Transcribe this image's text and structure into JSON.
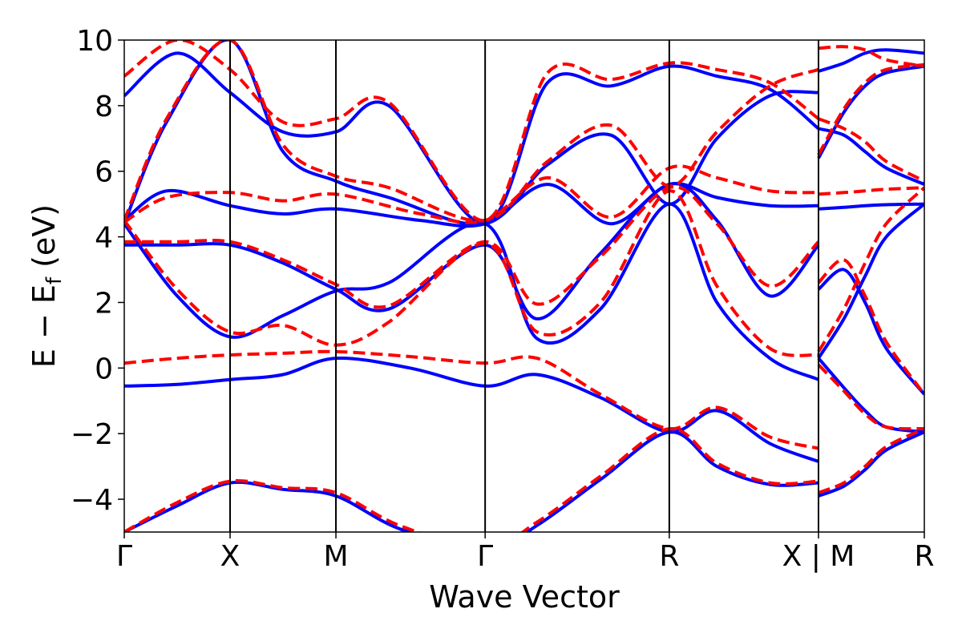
{
  "chart_data": {
    "type": "line",
    "title": "",
    "xlabel": "Wave Vector",
    "ylabel": "E − E_f (eV)",
    "ylabel_parts": {
      "main": "E − E",
      "sub": "f",
      "unit": " (eV)"
    },
    "ylim": [
      -5,
      10
    ],
    "y_ticks": [
      10,
      8,
      6,
      4,
      2,
      0,
      -2,
      -4
    ],
    "y_tick_labels": [
      "10",
      "8",
      "6",
      "4",
      "2",
      "0",
      "−2",
      "−4"
    ],
    "x_range": [
      0,
      7.56
    ],
    "k_points": [
      {
        "label": "Γ",
        "x": 0.0
      },
      {
        "label": "X",
        "x": 1.0
      },
      {
        "label": "M",
        "x": 2.0
      },
      {
        "label": "Γ",
        "x": 3.41
      },
      {
        "label": "R",
        "x": 5.15
      },
      {
        "label": "X | M",
        "x": 6.56
      },
      {
        "label": "R",
        "x": 7.56
      }
    ],
    "grid": false,
    "colors": {
      "solid": "#0000ff",
      "dashed": "#ff0000"
    },
    "series": [
      {
        "style": "solid",
        "color": "#0000ff",
        "x": [
          0,
          0.5,
          1,
          1.5,
          2,
          2.7,
          3.41,
          3.9,
          4.5,
          5.15,
          5.6,
          6.1,
          6.56
        ],
        "y": [
          -0.55,
          -0.5,
          -0.35,
          -0.2,
          0.3,
          0.0,
          -0.55,
          -0.2,
          -0.9,
          -1.95,
          -1.3,
          -2.3,
          -2.85
        ]
      },
      {
        "style": "dashed",
        "color": "#ff0000",
        "x": [
          0,
          0.5,
          1,
          1.5,
          2,
          2.7,
          3.41,
          3.9,
          4.5,
          5.15,
          5.6,
          6.1,
          6.56
        ],
        "y": [
          0.15,
          0.3,
          0.4,
          0.45,
          0.5,
          0.35,
          0.15,
          0.3,
          -0.8,
          -1.85,
          -1.2,
          -2.1,
          -2.45
        ]
      },
      {
        "style": "solid",
        "color": "#0000ff",
        "x": [
          0,
          0.5,
          1,
          1.5,
          2,
          2.5,
          3.41,
          3.9,
          4.5,
          5.15,
          5.6,
          6.1,
          6.56
        ],
        "y": [
          3.75,
          3.75,
          3.75,
          3.2,
          2.4,
          1.8,
          3.75,
          1.5,
          3.5,
          5.6,
          4.5,
          2.2,
          3.75
        ]
      },
      {
        "style": "dashed",
        "color": "#ff0000",
        "x": [
          0,
          0.5,
          1,
          1.5,
          2,
          2.5,
          3.41,
          3.9,
          4.5,
          5.15,
          5.6,
          6.1,
          6.56
        ],
        "y": [
          3.85,
          3.85,
          3.85,
          3.3,
          2.55,
          1.9,
          3.85,
          1.95,
          3.4,
          5.5,
          4.4,
          2.5,
          3.85
        ]
      },
      {
        "style": "solid",
        "color": "#0000ff",
        "x": [
          0,
          0.5,
          1,
          1.5,
          2,
          2.5,
          3.41,
          3.9,
          4.5,
          5.15,
          5.6,
          6.1,
          6.56
        ],
        "y": [
          4.4,
          2.2,
          0.95,
          1.6,
          2.35,
          2.6,
          4.4,
          0.9,
          1.8,
          5.0,
          2.0,
          0.3,
          -0.35
        ]
      },
      {
        "style": "dashed",
        "color": "#ff0000",
        "x": [
          0,
          0.5,
          1,
          1.5,
          2,
          2.5,
          3.41,
          3.9,
          4.5,
          5.15,
          5.6,
          6.1,
          6.56
        ],
        "y": [
          4.5,
          2.4,
          1.1,
          1.3,
          0.7,
          1.4,
          3.8,
          1.1,
          2.0,
          5.4,
          2.5,
          0.6,
          0.4
        ]
      },
      {
        "style": "solid",
        "color": "#0000ff",
        "x": [
          0,
          0.5,
          1,
          1.5,
          2,
          2.6,
          3.41,
          3.9,
          4.5,
          5.15,
          5.6,
          6.1,
          6.56
        ],
        "y": [
          -5.0,
          -4.2,
          -3.5,
          -3.7,
          -3.9,
          -4.9,
          -5.6,
          -4.8,
          -3.4,
          -1.95,
          -3.0,
          -3.55,
          -3.5
        ]
      },
      {
        "style": "dashed",
        "color": "#ff0000",
        "x": [
          0,
          0.5,
          1,
          1.5,
          2,
          2.6,
          3.41,
          3.9,
          4.5,
          5.15,
          5.6,
          6.1,
          6.56
        ],
        "y": [
          -5.0,
          -4.1,
          -3.45,
          -3.65,
          -3.8,
          -4.8,
          -5.5,
          -4.7,
          -3.3,
          -1.85,
          -2.9,
          -3.5,
          -3.45
        ]
      },
      {
        "style": "solid",
        "color": "#0000ff",
        "x": [
          0,
          0.4,
          1,
          1.5,
          2,
          2.8,
          3.41,
          4.0,
          4.6,
          5.15,
          5.6,
          6.1,
          6.56
        ],
        "y": [
          4.5,
          5.4,
          4.95,
          4.7,
          4.85,
          4.5,
          4.4,
          5.6,
          4.4,
          5.6,
          5.2,
          4.95,
          4.95
        ]
      },
      {
        "style": "dashed",
        "color": "#ff0000",
        "x": [
          0,
          0.4,
          1,
          1.5,
          2,
          2.8,
          3.41,
          4.0,
          4.6,
          5.15,
          5.6,
          6.1,
          6.56
        ],
        "y": [
          4.45,
          5.2,
          5.35,
          5.1,
          5.3,
          4.7,
          4.5,
          5.8,
          4.6,
          6.1,
          5.8,
          5.4,
          5.35
        ]
      },
      {
        "style": "solid",
        "color": "#0000ff",
        "x": [
          0,
          0.4,
          1,
          1.5,
          2,
          2.5,
          3.41,
          4.0,
          4.6,
          5.15,
          5.6,
          6.1,
          6.56
        ],
        "y": [
          4.4,
          7.5,
          10.0,
          6.6,
          5.7,
          5.2,
          4.4,
          6.2,
          7.1,
          5.0,
          7.0,
          8.3,
          8.4
        ]
      },
      {
        "style": "dashed",
        "color": "#ff0000",
        "x": [
          0,
          0.4,
          1,
          1.5,
          2,
          2.5,
          3.41,
          4.0,
          4.6,
          5.15,
          5.6,
          6.1,
          6.56
        ],
        "y": [
          4.5,
          7.6,
          10.0,
          6.8,
          5.85,
          5.5,
          4.5,
          6.3,
          7.4,
          5.55,
          7.2,
          8.6,
          9.1
        ]
      },
      {
        "style": "solid",
        "color": "#0000ff",
        "x": [
          0,
          0.5,
          1,
          1.5,
          2,
          2.5,
          3.41,
          4.0,
          4.6,
          5.15,
          5.6,
          6.1,
          6.56
        ],
        "y": [
          8.3,
          9.6,
          8.4,
          7.2,
          7.2,
          8.0,
          4.4,
          8.7,
          8.6,
          9.2,
          8.9,
          8.5,
          7.3
        ]
      },
      {
        "style": "dashed",
        "color": "#ff0000",
        "x": [
          0,
          0.5,
          1,
          1.5,
          2,
          2.5,
          3.41,
          4.0,
          4.6,
          5.15,
          5.6,
          6.1,
          6.56
        ],
        "y": [
          8.9,
          10.0,
          9.1,
          7.5,
          7.6,
          8.1,
          4.5,
          9.0,
          8.8,
          9.3,
          9.1,
          8.7,
          7.6
        ]
      },
      {
        "style": "solid",
        "color": "#0000ff",
        "x": [
          6.56,
          6.8,
          7.0,
          7.2,
          7.56
        ],
        "y": [
          -3.9,
          -3.6,
          -3.1,
          -2.5,
          -1.95
        ]
      },
      {
        "style": "dashed",
        "color": "#ff0000",
        "x": [
          6.56,
          6.8,
          7.0,
          7.2,
          7.56
        ],
        "y": [
          -3.8,
          -3.5,
          -3.0,
          -2.4,
          -1.85
        ]
      },
      {
        "style": "solid",
        "color": "#0000ff",
        "x": [
          6.56,
          6.8,
          7.0,
          7.2,
          7.56
        ],
        "y": [
          0.3,
          -0.6,
          -1.3,
          -1.8,
          -1.95
        ]
      },
      {
        "style": "dashed",
        "color": "#ff0000",
        "x": [
          6.56,
          6.8,
          7.0,
          7.2,
          7.56
        ],
        "y": [
          0.1,
          -0.7,
          -1.4,
          -1.8,
          -1.85
        ]
      },
      {
        "style": "solid",
        "color": "#0000ff",
        "x": [
          6.56,
          6.8,
          7.0,
          7.2,
          7.56
        ],
        "y": [
          2.4,
          3.0,
          2.0,
          0.6,
          -0.8
        ]
      },
      {
        "style": "dashed",
        "color": "#ff0000",
        "x": [
          6.56,
          6.8,
          7.0,
          7.2,
          7.56
        ],
        "y": [
          2.6,
          3.3,
          2.2,
          0.8,
          -0.8
        ]
      },
      {
        "style": "solid",
        "color": "#0000ff",
        "x": [
          6.56,
          6.8,
          7.0,
          7.2,
          7.56
        ],
        "y": [
          0.3,
          1.5,
          2.8,
          4.0,
          5.0
        ]
      },
      {
        "style": "dashed",
        "color": "#ff0000",
        "x": [
          6.56,
          6.8,
          7.0,
          7.2,
          7.56
        ],
        "y": [
          0.5,
          1.8,
          3.2,
          4.4,
          5.5
        ]
      },
      {
        "style": "solid",
        "color": "#0000ff",
        "x": [
          6.56,
          6.8,
          7.0,
          7.2,
          7.56
        ],
        "y": [
          4.85,
          4.9,
          4.95,
          4.98,
          5.0
        ]
      },
      {
        "style": "dashed",
        "color": "#ff0000",
        "x": [
          6.56,
          6.8,
          7.0,
          7.2,
          7.56
        ],
        "y": [
          5.3,
          5.35,
          5.4,
          5.45,
          5.5
        ]
      },
      {
        "style": "solid",
        "color": "#0000ff",
        "x": [
          6.56,
          6.8,
          7.0,
          7.2,
          7.56
        ],
        "y": [
          7.3,
          7.1,
          6.6,
          6.1,
          5.6
        ]
      },
      {
        "style": "dashed",
        "color": "#ff0000",
        "x": [
          6.56,
          6.8,
          7.0,
          7.2,
          7.56
        ],
        "y": [
          7.6,
          7.3,
          6.9,
          6.3,
          5.7
        ]
      },
      {
        "style": "solid",
        "color": "#0000ff",
        "x": [
          6.56,
          6.8,
          7.0,
          7.2,
          7.56
        ],
        "y": [
          6.4,
          7.8,
          8.6,
          9.0,
          9.2
        ]
      },
      {
        "style": "dashed",
        "color": "#ff0000",
        "x": [
          6.56,
          6.8,
          7.0,
          7.2,
          7.56
        ],
        "y": [
          6.5,
          7.9,
          8.7,
          9.1,
          9.25
        ]
      },
      {
        "style": "solid",
        "color": "#0000ff",
        "x": [
          6.56,
          6.8,
          7.0,
          7.2,
          7.56
        ],
        "y": [
          9.05,
          9.3,
          9.6,
          9.7,
          9.6
        ]
      },
      {
        "style": "dashed",
        "color": "#ff0000",
        "x": [
          6.56,
          6.8,
          7.0,
          7.2,
          7.56
        ],
        "y": [
          9.75,
          9.8,
          9.7,
          9.4,
          9.2
        ]
      }
    ]
  }
}
